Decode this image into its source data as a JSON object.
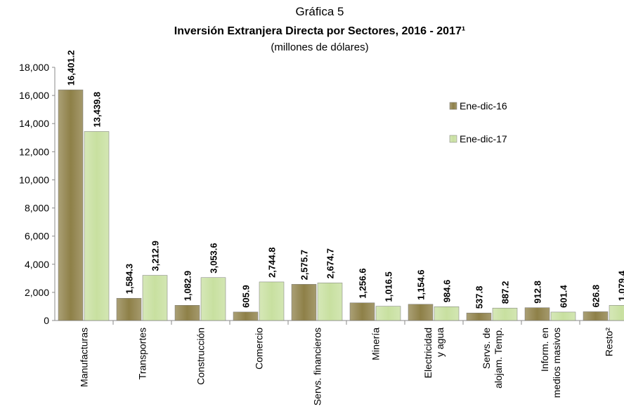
{
  "chart_data": {
    "type": "bar",
    "title": "Gráfica 5",
    "subtitle": "Inversión Extranjera Directa por Sectores, 2016 - 2017¹",
    "unit_label": "(millones de dólares)",
    "categories": [
      "Manufacturas",
      "Transportes",
      "Construcción",
      "Comercio",
      "Servs. financieros",
      "Minería",
      "Electricidad\ny agua",
      "Servs. de\nalojam. Temp.",
      "Inform. en\nmedios masivos",
      "Resto²"
    ],
    "series": [
      {
        "name": "Ene-dic-16",
        "color": "#8e8048",
        "label_color": "#9b8a4c",
        "values": [
          16401.2,
          1584.3,
          1082.9,
          605.9,
          2575.7,
          1256.6,
          1154.6,
          537.8,
          912.8,
          626.8
        ],
        "value_labels": [
          "16,401.2",
          "1,584.3",
          "1,082.9",
          "605.9",
          "2,575.7",
          "1,256.6",
          "1,154.6",
          "537.8",
          "912.8",
          "626.8"
        ]
      },
      {
        "name": "Ene-dic-17",
        "color": "#c8e0a0",
        "label_color": "#77933c",
        "values": [
          13439.8,
          3212.9,
          3053.6,
          2744.8,
          2674.7,
          1016.5,
          984.6,
          887.2,
          601.4,
          1079.4
        ],
        "value_labels": [
          "13,439.8",
          "3,212.9",
          "3,053.6",
          "2,744.8",
          "2,674.7",
          "1,016.5",
          "984.6",
          "887.2",
          "601.4",
          "1,079.4"
        ]
      }
    ],
    "ylim": [
      0,
      18000
    ],
    "yticks": [
      0,
      {
        "value": 2000,
        "label": "2,000"
      },
      {
        "value": 4000,
        "label": "4,000"
      },
      {
        "value": 6000,
        "label": "6,000"
      },
      {
        "value": 8000,
        "label": "8,000"
      },
      {
        "value": 10000,
        "label": "10,000"
      },
      {
        "value": 12000,
        "label": "12,000"
      },
      {
        "value": 14000,
        "label": "14,000"
      },
      {
        "value": 16000,
        "label": "16,000"
      },
      {
        "value": 18000,
        "label": "18,000"
      }
    ],
    "grid": false,
    "legend": "right"
  }
}
